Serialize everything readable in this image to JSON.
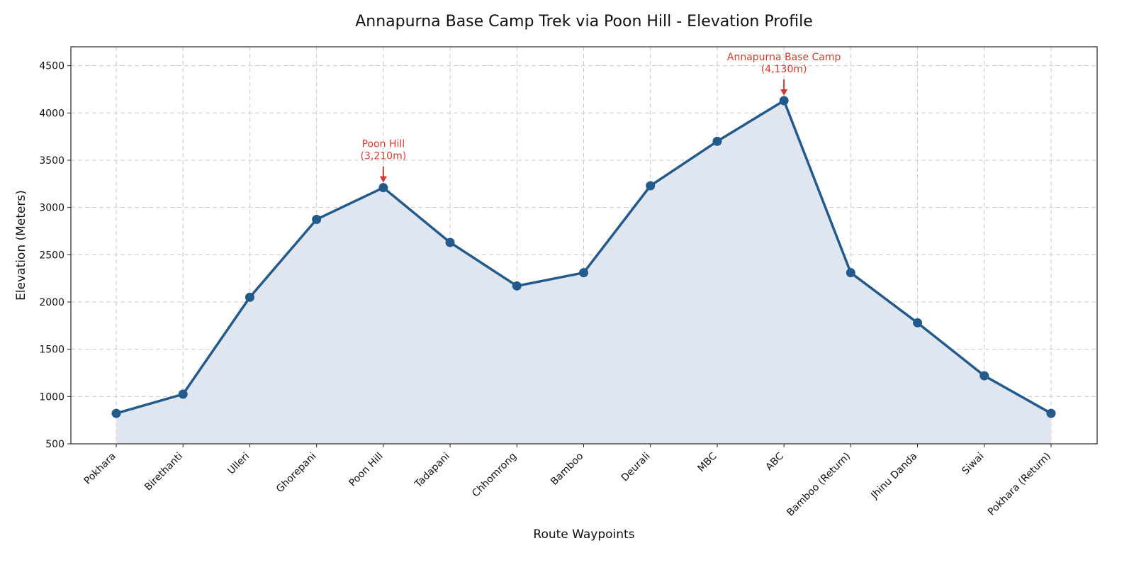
{
  "chart_data": {
    "type": "area",
    "title": "Annapurna Base Camp Trek via Poon Hill - Elevation Profile",
    "xlabel": "Route Waypoints",
    "ylabel": "Elevation (Meters)",
    "categories": [
      "Pokhara",
      "Birethanti",
      "Ulleri",
      "Ghorepani",
      "Poon Hill",
      "Tadapani",
      "Chhomrong",
      "Bamboo",
      "Deurali",
      "MBC",
      "ABC",
      "Bamboo (Return)",
      "Jhinu Danda",
      "Siwai",
      "Pokhara (Return)"
    ],
    "values": [
      822,
      1025,
      2050,
      2874,
      3210,
      2630,
      2170,
      2310,
      3230,
      3700,
      4130,
      2310,
      1780,
      1220,
      822
    ],
    "ylim": [
      500,
      4700
    ],
    "yticks": [
      500,
      1000,
      1500,
      2000,
      2500,
      3000,
      3500,
      4000,
      4500
    ],
    "grid": true,
    "annotations": [
      {
        "index": 4,
        "lines": [
          "Poon Hill",
          "(3,210m)"
        ]
      },
      {
        "index": 10,
        "lines": [
          "Annapurna Base Camp",
          "(4,130m)"
        ]
      }
    ],
    "colors": {
      "line": "#235a8c",
      "marker": "#235a8c",
      "fill": "#dfe6ef",
      "annotation": "#d23a32",
      "grid": "#c9c9c9"
    }
  }
}
